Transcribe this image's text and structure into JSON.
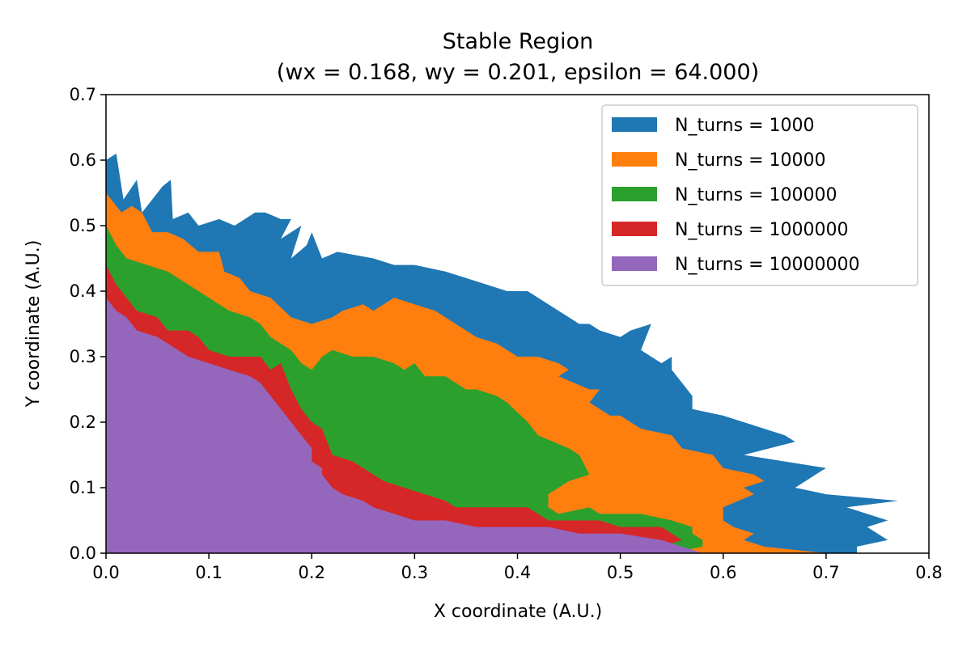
{
  "chart_data": {
    "type": "area",
    "title": "Stable Region",
    "subtitle": "(wx = 0.168, wy = 0.201, epsilon = 64.000)",
    "xlabel": "X coordinate (A.U.)",
    "ylabel": "Y coordinate (A.U.)",
    "xlim": [
      0.0,
      0.8
    ],
    "ylim": [
      0.0,
      0.7
    ],
    "xticks": [
      "0.0",
      "0.1",
      "0.2",
      "0.3",
      "0.4",
      "0.5",
      "0.6",
      "0.7",
      "0.8"
    ],
    "yticks": [
      "0.0",
      "0.1",
      "0.2",
      "0.3",
      "0.4",
      "0.5",
      "0.6",
      "0.7"
    ],
    "grid": false,
    "legend_position": "top-right",
    "series": [
      {
        "name": "N_turns = 1000",
        "color": "#1f77b4",
        "points": [
          [
            0.0,
            0.6
          ],
          [
            0.01,
            0.61
          ],
          [
            0.017,
            0.54
          ],
          [
            0.03,
            0.57
          ],
          [
            0.035,
            0.52
          ],
          [
            0.055,
            0.56
          ],
          [
            0.063,
            0.57
          ],
          [
            0.065,
            0.51
          ],
          [
            0.08,
            0.52
          ],
          [
            0.09,
            0.5
          ],
          [
            0.11,
            0.51
          ],
          [
            0.125,
            0.5
          ],
          [
            0.145,
            0.52
          ],
          [
            0.155,
            0.52
          ],
          [
            0.17,
            0.51
          ],
          [
            0.18,
            0.51
          ],
          [
            0.17,
            0.48
          ],
          [
            0.19,
            0.5
          ],
          [
            0.18,
            0.45
          ],
          [
            0.195,
            0.47
          ],
          [
            0.2,
            0.49
          ],
          [
            0.21,
            0.45
          ],
          [
            0.225,
            0.46
          ],
          [
            0.26,
            0.45
          ],
          [
            0.28,
            0.44
          ],
          [
            0.3,
            0.44
          ],
          [
            0.33,
            0.43
          ],
          [
            0.35,
            0.42
          ],
          [
            0.37,
            0.41
          ],
          [
            0.39,
            0.4
          ],
          [
            0.41,
            0.4
          ],
          [
            0.42,
            0.39
          ],
          [
            0.44,
            0.37
          ],
          [
            0.46,
            0.35
          ],
          [
            0.47,
            0.35
          ],
          [
            0.48,
            0.34
          ],
          [
            0.5,
            0.33
          ],
          [
            0.51,
            0.34
          ],
          [
            0.53,
            0.35
          ],
          [
            0.52,
            0.31
          ],
          [
            0.54,
            0.29
          ],
          [
            0.55,
            0.3
          ],
          [
            0.55,
            0.28
          ],
          [
            0.56,
            0.26
          ],
          [
            0.57,
            0.24
          ],
          [
            0.57,
            0.22
          ],
          [
            0.6,
            0.21
          ],
          [
            0.62,
            0.2
          ],
          [
            0.66,
            0.18
          ],
          [
            0.67,
            0.17
          ],
          [
            0.62,
            0.15
          ],
          [
            0.66,
            0.14
          ],
          [
            0.7,
            0.13
          ],
          [
            0.67,
            0.1
          ],
          [
            0.7,
            0.09
          ],
          [
            0.77,
            0.08
          ],
          [
            0.72,
            0.07
          ],
          [
            0.76,
            0.05
          ],
          [
            0.74,
            0.04
          ],
          [
            0.76,
            0.02
          ],
          [
            0.73,
            0.01
          ],
          [
            0.73,
            0.0
          ]
        ]
      },
      {
        "name": "N_turns = 10000",
        "color": "#ff7f0e",
        "points": [
          [
            0.0,
            0.55
          ],
          [
            0.015,
            0.52
          ],
          [
            0.025,
            0.53
          ],
          [
            0.035,
            0.52
          ],
          [
            0.045,
            0.49
          ],
          [
            0.06,
            0.49
          ],
          [
            0.075,
            0.48
          ],
          [
            0.09,
            0.46
          ],
          [
            0.11,
            0.46
          ],
          [
            0.115,
            0.43
          ],
          [
            0.13,
            0.42
          ],
          [
            0.14,
            0.4
          ],
          [
            0.16,
            0.39
          ],
          [
            0.18,
            0.36
          ],
          [
            0.2,
            0.35
          ],
          [
            0.22,
            0.36
          ],
          [
            0.23,
            0.37
          ],
          [
            0.25,
            0.38
          ],
          [
            0.26,
            0.37
          ],
          [
            0.28,
            0.39
          ],
          [
            0.3,
            0.38
          ],
          [
            0.32,
            0.37
          ],
          [
            0.33,
            0.36
          ],
          [
            0.35,
            0.34
          ],
          [
            0.36,
            0.33
          ],
          [
            0.38,
            0.32
          ],
          [
            0.39,
            0.31
          ],
          [
            0.4,
            0.3
          ],
          [
            0.42,
            0.3
          ],
          [
            0.44,
            0.29
          ],
          [
            0.45,
            0.28
          ],
          [
            0.44,
            0.27
          ],
          [
            0.47,
            0.25
          ],
          [
            0.48,
            0.25
          ],
          [
            0.47,
            0.23
          ],
          [
            0.49,
            0.21
          ],
          [
            0.5,
            0.21
          ],
          [
            0.52,
            0.19
          ],
          [
            0.55,
            0.18
          ],
          [
            0.56,
            0.16
          ],
          [
            0.59,
            0.15
          ],
          [
            0.6,
            0.13
          ],
          [
            0.63,
            0.12
          ],
          [
            0.64,
            0.11
          ],
          [
            0.62,
            0.1
          ],
          [
            0.63,
            0.09
          ],
          [
            0.6,
            0.07
          ],
          [
            0.6,
            0.05
          ],
          [
            0.61,
            0.04
          ],
          [
            0.63,
            0.03
          ],
          [
            0.62,
            0.02
          ],
          [
            0.64,
            0.01
          ],
          [
            0.7,
            0.0
          ]
        ]
      },
      {
        "name": "N_turns = 100000",
        "color": "#2ca02c",
        "points": [
          [
            0.0,
            0.5
          ],
          [
            0.01,
            0.47
          ],
          [
            0.02,
            0.45
          ],
          [
            0.04,
            0.44
          ],
          [
            0.06,
            0.43
          ],
          [
            0.08,
            0.41
          ],
          [
            0.1,
            0.39
          ],
          [
            0.11,
            0.38
          ],
          [
            0.12,
            0.37
          ],
          [
            0.14,
            0.36
          ],
          [
            0.15,
            0.35
          ],
          [
            0.16,
            0.33
          ],
          [
            0.18,
            0.31
          ],
          [
            0.19,
            0.29
          ],
          [
            0.2,
            0.28
          ],
          [
            0.21,
            0.3
          ],
          [
            0.22,
            0.31
          ],
          [
            0.24,
            0.3
          ],
          [
            0.25,
            0.3
          ],
          [
            0.26,
            0.3
          ],
          [
            0.28,
            0.29
          ],
          [
            0.29,
            0.28
          ],
          [
            0.3,
            0.29
          ],
          [
            0.31,
            0.27
          ],
          [
            0.33,
            0.27
          ],
          [
            0.34,
            0.26
          ],
          [
            0.35,
            0.25
          ],
          [
            0.36,
            0.25
          ],
          [
            0.38,
            0.24
          ],
          [
            0.39,
            0.23
          ],
          [
            0.41,
            0.2
          ],
          [
            0.42,
            0.18
          ],
          [
            0.45,
            0.16
          ],
          [
            0.46,
            0.15
          ],
          [
            0.47,
            0.12
          ],
          [
            0.45,
            0.11
          ],
          [
            0.43,
            0.09
          ],
          [
            0.43,
            0.07
          ],
          [
            0.44,
            0.06
          ],
          [
            0.47,
            0.07
          ],
          [
            0.48,
            0.06
          ],
          [
            0.52,
            0.06
          ],
          [
            0.55,
            0.05
          ],
          [
            0.57,
            0.04
          ],
          [
            0.57,
            0.03
          ],
          [
            0.58,
            0.02
          ],
          [
            0.58,
            0.01
          ],
          [
            0.55,
            0.0
          ]
        ]
      },
      {
        "name": "N_turns = 1000000",
        "color": "#d62728",
        "points": [
          [
            0.0,
            0.44
          ],
          [
            0.01,
            0.41
          ],
          [
            0.02,
            0.39
          ],
          [
            0.03,
            0.37
          ],
          [
            0.05,
            0.36
          ],
          [
            0.06,
            0.34
          ],
          [
            0.08,
            0.34
          ],
          [
            0.09,
            0.33
          ],
          [
            0.1,
            0.31
          ],
          [
            0.12,
            0.3
          ],
          [
            0.14,
            0.3
          ],
          [
            0.15,
            0.3
          ],
          [
            0.16,
            0.28
          ],
          [
            0.17,
            0.29
          ],
          [
            0.18,
            0.25
          ],
          [
            0.19,
            0.22
          ],
          [
            0.2,
            0.2
          ],
          [
            0.21,
            0.19
          ],
          [
            0.22,
            0.15
          ],
          [
            0.24,
            0.14
          ],
          [
            0.25,
            0.13
          ],
          [
            0.27,
            0.11
          ],
          [
            0.29,
            0.1
          ],
          [
            0.31,
            0.09
          ],
          [
            0.33,
            0.08
          ],
          [
            0.34,
            0.07
          ],
          [
            0.36,
            0.07
          ],
          [
            0.38,
            0.07
          ],
          [
            0.41,
            0.07
          ],
          [
            0.42,
            0.06
          ],
          [
            0.43,
            0.05
          ],
          [
            0.44,
            0.05
          ],
          [
            0.48,
            0.05
          ],
          [
            0.5,
            0.04
          ],
          [
            0.51,
            0.04
          ],
          [
            0.54,
            0.04
          ],
          [
            0.56,
            0.02
          ],
          [
            0.54,
            0.01
          ],
          [
            0.54,
            0.0
          ]
        ]
      },
      {
        "name": "N_turns = 10000000",
        "color": "#9467bd",
        "points": [
          [
            0.0,
            0.39
          ],
          [
            0.01,
            0.37
          ],
          [
            0.02,
            0.36
          ],
          [
            0.03,
            0.34
          ],
          [
            0.05,
            0.33
          ],
          [
            0.07,
            0.31
          ],
          [
            0.08,
            0.3
          ],
          [
            0.1,
            0.29
          ],
          [
            0.12,
            0.28
          ],
          [
            0.14,
            0.27
          ],
          [
            0.15,
            0.26
          ],
          [
            0.16,
            0.24
          ],
          [
            0.17,
            0.22
          ],
          [
            0.18,
            0.2
          ],
          [
            0.19,
            0.18
          ],
          [
            0.2,
            0.16
          ],
          [
            0.2,
            0.14
          ],
          [
            0.21,
            0.13
          ],
          [
            0.21,
            0.12
          ],
          [
            0.22,
            0.1
          ],
          [
            0.23,
            0.09
          ],
          [
            0.25,
            0.08
          ],
          [
            0.26,
            0.07
          ],
          [
            0.28,
            0.06
          ],
          [
            0.3,
            0.05
          ],
          [
            0.33,
            0.05
          ],
          [
            0.36,
            0.04
          ],
          [
            0.4,
            0.04
          ],
          [
            0.43,
            0.04
          ],
          [
            0.46,
            0.03
          ],
          [
            0.5,
            0.03
          ],
          [
            0.54,
            0.02
          ],
          [
            0.56,
            0.01
          ],
          [
            0.58,
            0.0
          ]
        ]
      }
    ]
  }
}
